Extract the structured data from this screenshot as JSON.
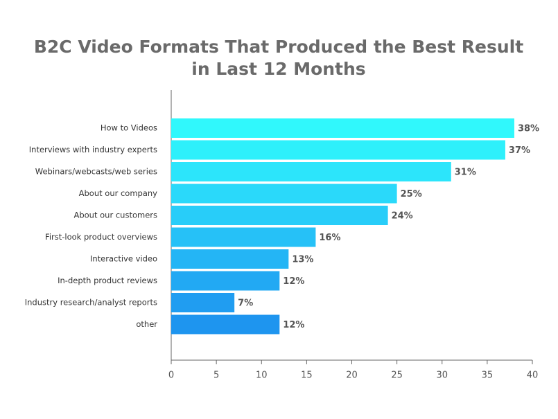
{
  "chart_data": {
    "type": "bar",
    "orientation": "horizontal",
    "title": [
      "B2C Video Formats That Produced the Best Result",
      "in Last 12 Months"
    ],
    "categories": [
      "How to Videos",
      "Interviews with industry experts",
      "Webinars/webcasts/web series",
      "About our company",
      "About our customers",
      "First-look product overviews",
      "Interactive video",
      "In-depth product reviews",
      "Industry research/analyst reports",
      "other"
    ],
    "values": [
      38,
      37,
      31,
      25,
      24,
      16,
      13,
      12,
      7,
      12
    ],
    "value_labels": [
      "38%",
      "37%",
      "31%",
      "25%",
      "24%",
      "16%",
      "13%",
      "12%",
      "7%",
      "12%"
    ],
    "colors": [
      "#30f8fc",
      "#2ef0fb",
      "#2ce5fb",
      "#2ad9fa",
      "#28cdf9",
      "#26c1f7",
      "#24b5f5",
      "#22a9f3",
      "#209df1",
      "#1e95ef"
    ],
    "xlim": [
      0,
      40
    ],
    "xticks": [
      0,
      5,
      10,
      15,
      20,
      25,
      30,
      35,
      40
    ],
    "grid": false
  }
}
